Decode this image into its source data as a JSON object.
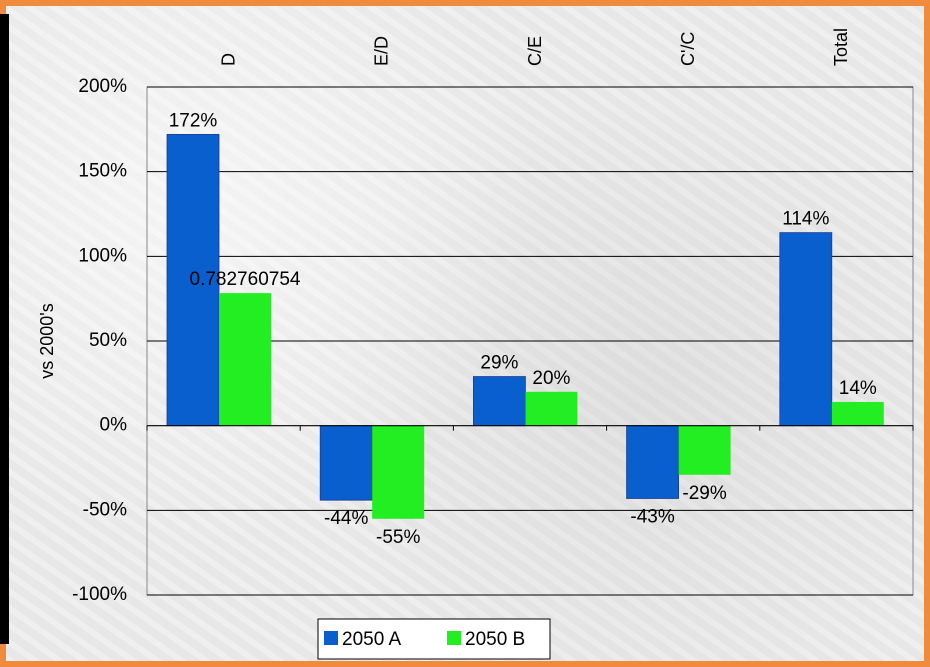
{
  "chart_data": {
    "type": "bar",
    "categories": [
      "D",
      "E/D",
      "C/E",
      "C'/C",
      "Total"
    ],
    "series": [
      {
        "name": "2050 A",
        "values": [
          1.72,
          -0.44,
          0.29,
          -0.43,
          1.14
        ],
        "labels": [
          "172%",
          "-44%",
          "29%",
          "-43%",
          "114%"
        ],
        "color": "#0a5fcf"
      },
      {
        "name": "2050 B",
        "values": [
          0.782760754,
          -0.55,
          0.2,
          -0.29,
          0.14
        ],
        "labels": [
          "0.782760754",
          "-55%",
          "20%",
          "-29%",
          "14%"
        ],
        "color": "#22ee22"
      }
    ],
    "ylabel": "vs 2000's",
    "ylim": [
      -1.0,
      2.0
    ],
    "yticks": [
      {
        "value": 2.0,
        "label": "200%"
      },
      {
        "value": 1.5,
        "label": "150%"
      },
      {
        "value": 1.0,
        "label": "100%"
      },
      {
        "value": 0.5,
        "label": "50%"
      },
      {
        "value": 0.0,
        "label": "0%"
      },
      {
        "value": -0.5,
        "label": "-50%"
      },
      {
        "value": -1.0,
        "label": "-100%"
      }
    ],
    "grid": true,
    "legend": "bottom",
    "category_label_position": "top, rotated"
  }
}
